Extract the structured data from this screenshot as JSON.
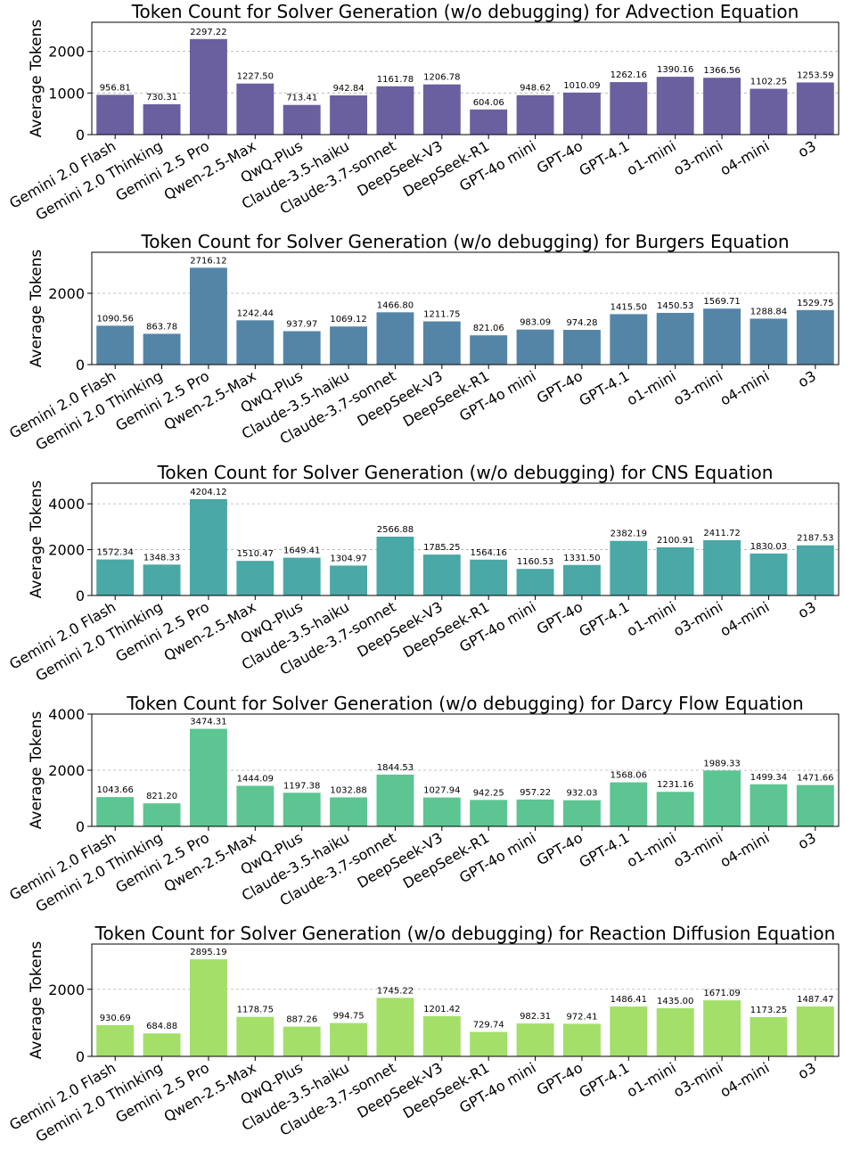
{
  "chart_data": [
    {
      "type": "bar",
      "title": "Token Count for Solver Generation (w/o debugging) for Advection Equation",
      "xlabel": "",
      "ylabel": "Average Tokens",
      "categories": [
        "Gemini 2.0 Flash",
        "Gemini 2.0 Thinking",
        "Gemini 2.5 Pro",
        "Qwen-2.5-Max",
        "QwQ-Plus",
        "Claude-3.5-haiku",
        "Claude-3.7-sonnet",
        "DeepSeek-V3",
        "DeepSeek-R1",
        "GPT-4o mini",
        "GPT-4o",
        "GPT-4.1",
        "o1-mini",
        "o3-mini",
        "o4-mini",
        "o3"
      ],
      "values": [
        956.81,
        730.31,
        2297.22,
        1227.5,
        713.41,
        942.84,
        1161.78,
        1206.78,
        604.06,
        948.62,
        1010.09,
        1262.16,
        1390.16,
        1366.56,
        1102.25,
        1253.59
      ],
      "value_labels": [
        "956.81",
        "730.31",
        "2297.22",
        "1227.50",
        "713.41",
        "942.84",
        "1161.78",
        "1206.78",
        "604.06",
        "948.62",
        "1010.09",
        "1262.16",
        "1390.16",
        "1366.56",
        "1102.25",
        "1253.59"
      ],
      "yticks": [
        0,
        1000,
        2000
      ],
      "ylim": [
        0,
        2700
      ],
      "grid": true,
      "color": "#6a5f9f"
    },
    {
      "type": "bar",
      "title": "Token Count for Solver Generation (w/o debugging) for Burgers Equation",
      "xlabel": "",
      "ylabel": "Average Tokens",
      "categories": [
        "Gemini 2.0 Flash",
        "Gemini 2.0 Thinking",
        "Gemini 2.5 Pro",
        "Qwen-2.5-Max",
        "QwQ-Plus",
        "Claude-3.5-haiku",
        "Claude-3.7-sonnet",
        "DeepSeek-V3",
        "DeepSeek-R1",
        "GPT-4o mini",
        "GPT-4o",
        "GPT-4.1",
        "o1-mini",
        "o3-mini",
        "o4-mini",
        "o3"
      ],
      "values": [
        1090.56,
        863.78,
        2716.12,
        1242.44,
        937.97,
        1069.12,
        1466.8,
        1211.75,
        821.06,
        983.09,
        974.28,
        1415.5,
        1450.53,
        1569.71,
        1288.84,
        1529.75
      ],
      "value_labels": [
        "1090.56",
        "863.78",
        "2716.12",
        "1242.44",
        "937.97",
        "1069.12",
        "1466.80",
        "1211.75",
        "821.06",
        "983.09",
        "974.28",
        "1415.50",
        "1450.53",
        "1569.71",
        "1288.84",
        "1529.75"
      ],
      "yticks": [
        0,
        2000
      ],
      "ylim": [
        0,
        3150
      ],
      "grid": true,
      "color": "#5585a6"
    },
    {
      "type": "bar",
      "title": "Token Count for Solver Generation (w/o debugging) for CNS Equation",
      "xlabel": "",
      "ylabel": "Average Tokens",
      "categories": [
        "Gemini 2.0 Flash",
        "Gemini 2.0 Thinking",
        "Gemini 2.5 Pro",
        "Qwen-2.5-Max",
        "QwQ-Plus",
        "Claude-3.5-haiku",
        "Claude-3.7-sonnet",
        "DeepSeek-V3",
        "DeepSeek-R1",
        "GPT-4o mini",
        "GPT-4o",
        "GPT-4.1",
        "o1-mini",
        "o3-mini",
        "o4-mini",
        "o3"
      ],
      "values": [
        1572.34,
        1348.33,
        4204.12,
        1510.47,
        1649.41,
        1304.97,
        2566.88,
        1785.25,
        1564.16,
        1160.53,
        1331.5,
        2382.19,
        2100.91,
        2411.72,
        1830.03,
        2187.53
      ],
      "value_labels": [
        "1572.34",
        "1348.33",
        "4204.12",
        "1510.47",
        "1649.41",
        "1304.97",
        "2566.88",
        "1785.25",
        "1564.16",
        "1160.53",
        "1331.50",
        "2382.19",
        "2100.91",
        "2411.72",
        "1830.03",
        "2187.53"
      ],
      "yticks": [
        0,
        2000,
        4000
      ],
      "ylim": [
        0,
        4900
      ],
      "grid": true,
      "color": "#4aa8a6"
    },
    {
      "type": "bar",
      "title": "Token Count for Solver Generation (w/o debugging) for Darcy Flow Equation",
      "xlabel": "",
      "ylabel": "Average Tokens",
      "categories": [
        "Gemini 2.0 Flash",
        "Gemini 2.0 Thinking",
        "Gemini 2.5 Pro",
        "Qwen-2.5-Max",
        "QwQ-Plus",
        "Claude-3.5-haiku",
        "Claude-3.7-sonnet",
        "DeepSeek-V3",
        "DeepSeek-R1",
        "GPT-4o mini",
        "GPT-4o",
        "GPT-4.1",
        "o1-mini",
        "o3-mini",
        "o4-mini",
        "o3"
      ],
      "values": [
        1043.66,
        821.2,
        3474.31,
        1444.09,
        1197.38,
        1032.88,
        1844.53,
        1027.94,
        942.25,
        957.22,
        932.03,
        1568.06,
        1231.16,
        1989.33,
        1499.34,
        1471.66
      ],
      "value_labels": [
        "1043.66",
        "821.20",
        "3474.31",
        "1444.09",
        "1197.38",
        "1032.88",
        "1844.53",
        "1027.94",
        "942.25",
        "957.22",
        "932.03",
        "1568.06",
        "1231.16",
        "1989.33",
        "1499.34",
        "1471.66"
      ],
      "yticks": [
        0,
        2000,
        4000
      ],
      "ylim": [
        0,
        4000
      ],
      "grid": true,
      "color": "#5cc592"
    },
    {
      "type": "bar",
      "title": "Token Count for Solver Generation (w/o debugging) for Reaction Diffusion Equation",
      "xlabel": "",
      "ylabel": "Average Tokens",
      "categories": [
        "Gemini 2.0 Flash",
        "Gemini 2.0 Thinking",
        "Gemini 2.5 Pro",
        "Qwen-2.5-Max",
        "QwQ-Plus",
        "Claude-3.5-haiku",
        "Claude-3.7-sonnet",
        "DeepSeek-V3",
        "DeepSeek-R1",
        "GPT-4o mini",
        "GPT-4o",
        "GPT-4.1",
        "o1-mini",
        "o3-mini",
        "o4-mini",
        "o3"
      ],
      "values": [
        930.69,
        684.88,
        2895.19,
        1178.75,
        887.26,
        994.75,
        1745.22,
        1201.42,
        729.74,
        982.31,
        972.41,
        1486.41,
        1435.0,
        1671.09,
        1173.25,
        1487.47
      ],
      "value_labels": [
        "930.69",
        "684.88",
        "2895.19",
        "1178.75",
        "887.26",
        "994.75",
        "1745.22",
        "1201.42",
        "729.74",
        "982.31",
        "972.41",
        "1486.41",
        "1435.00",
        "1671.09",
        "1173.25",
        "1487.47"
      ],
      "yticks": [
        0,
        2000
      ],
      "ylim": [
        0,
        3350
      ],
      "grid": true,
      "color": "#a3df69"
    }
  ]
}
